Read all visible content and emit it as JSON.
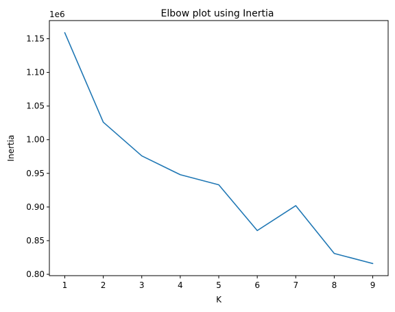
{
  "chart_data": {
    "type": "line",
    "title": "Elbow plot using Inertia",
    "xlabel": "K",
    "ylabel": "Inertia",
    "y_offset_label": "1e6",
    "x": [
      1,
      2,
      3,
      4,
      5,
      6,
      7,
      8,
      9
    ],
    "series": [
      {
        "values": [
          1.159,
          1.026,
          0.976,
          0.948,
          0.933,
          0.865,
          0.902,
          0.831,
          0.816
        ],
        "color": "#1f77b4"
      }
    ],
    "x_ticks": [
      1,
      2,
      3,
      4,
      5,
      6,
      7,
      8,
      9
    ],
    "x_tick_labels": [
      "1",
      "2",
      "3",
      "4",
      "5",
      "6",
      "7",
      "8",
      "9"
    ],
    "y_ticks": [
      0.8,
      0.85,
      0.9,
      0.95,
      1.0,
      1.05,
      1.1,
      1.15
    ],
    "y_tick_labels": [
      "0.80",
      "0.85",
      "0.90",
      "0.95",
      "1.00",
      "1.05",
      "1.10",
      "1.15"
    ],
    "xlim": [
      0.6,
      9.4
    ],
    "ylim": [
      0.798,
      1.177
    ],
    "grid": false,
    "legend": "none"
  }
}
